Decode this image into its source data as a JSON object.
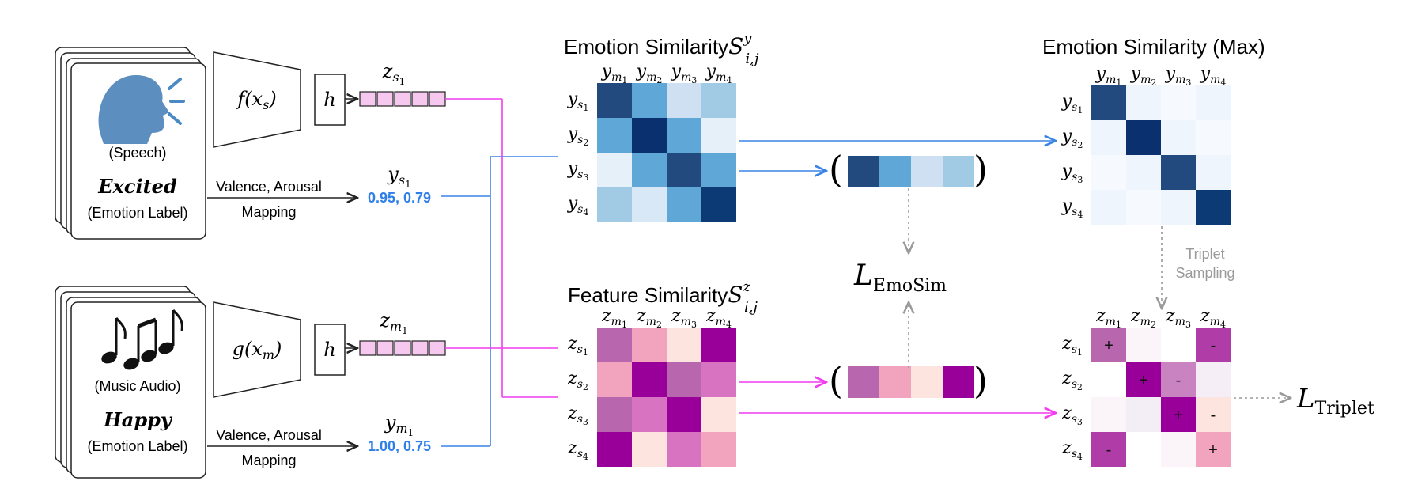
{
  "speech_card": {
    "modality_label": "(Speech)",
    "emotion": "Excited",
    "emotion_caption": "(Emotion Label)",
    "icon": "speaking-head-icon"
  },
  "music_card": {
    "modality_label": "(Music Audio)",
    "emotion": "Happy",
    "emotion_caption": "(Emotion Label)",
    "icon": "music-notes-icon"
  },
  "encoders": {
    "speech": "f(x",
    "speech_sub": "s",
    "music": "g(x",
    "music_sub": "m",
    "close": ")",
    "projection": "h"
  },
  "embeddings": {
    "speech": {
      "base": "z",
      "sub": "s",
      "subsub": "1"
    },
    "music": {
      "base": "z",
      "sub": "m",
      "subsub": "1"
    }
  },
  "mapping": {
    "line1": "Valence, Arousal",
    "line2": "Mapping"
  },
  "labels_va": {
    "speech": {
      "base": "y",
      "sub": "s",
      "subsub": "1",
      "value": "0.95, 0.79"
    },
    "music": {
      "base": "y",
      "sub": "m",
      "subsub": "1",
      "value": "1.00, 0.75"
    }
  },
  "emotion_similarity": {
    "title": "Emotion Similarity",
    "symbol": "S",
    "sup": "y",
    "sub": "i,j",
    "col_base": "y",
    "col_sub": "m",
    "row_base": "y",
    "row_sub": "s",
    "indices": [
      "1",
      "2",
      "3",
      "4"
    ],
    "matrix": [
      [
        "#234a7f",
        "#5fa7d6",
        "#cfe0f2",
        "#a1cae4"
      ],
      [
        "#5fa7d6",
        "#0b3070",
        "#5fa7d6",
        "#e6f0f9"
      ],
      [
        "#e6f0f9",
        "#5fa7d6",
        "#234a7f",
        "#5fa7d6"
      ],
      [
        "#a1cae4",
        "#d9e8f6",
        "#5fa7d6",
        "#0b3a75"
      ]
    ]
  },
  "emotion_similarity_max": {
    "title": "Emotion Similarity (Max)",
    "col_base": "y",
    "col_sub": "m",
    "row_base": "y",
    "row_sub": "s",
    "indices": [
      "1",
      "2",
      "3",
      "4"
    ],
    "matrix": [
      [
        "#234a7f",
        "#eef5fc",
        "#f6fafe",
        "#eef5fc"
      ],
      [
        "#eef5fc",
        "#0b3070",
        "#eef5fc",
        "#f6fafe"
      ],
      [
        "#f6fafe",
        "#eef5fc",
        "#234a7f",
        "#eef5fc"
      ],
      [
        "#eef5fc",
        "#f6fafe",
        "#eef5fc",
        "#0b3a75"
      ]
    ]
  },
  "feature_similarity": {
    "title": "Feature Similarity",
    "symbol": "S",
    "sup": "z",
    "sub": "i,j",
    "col_base": "z",
    "col_sub": "m",
    "row_base": "z",
    "row_sub": "s",
    "indices": [
      "1",
      "2",
      "3",
      "4"
    ],
    "matrix": [
      [
        "#b866ae",
        "#f2a3be",
        "#fde4df",
        "#990099"
      ],
      [
        "#f2a3be",
        "#990099",
        "#b866ae",
        "#d873c2"
      ],
      [
        "#b866ae",
        "#d873c2",
        "#990099",
        "#fde4df"
      ],
      [
        "#990099",
        "#fde4df",
        "#d873c2",
        "#f2a3be"
      ]
    ]
  },
  "triplet_matrix": {
    "col_base": "z",
    "col_sub": "m",
    "row_base": "z",
    "row_sub": "s",
    "indices": [
      "1",
      "2",
      "3",
      "4"
    ],
    "matrix": [
      [
        "#b866ae",
        "#fbf5fa",
        "#ffffff",
        "#b03ca8"
      ],
      [
        "#ffffff",
        "#990099",
        "#c983c1",
        "#f5eef6"
      ],
      [
        "#fbf5fa",
        "#f3eef5",
        "#990099",
        "#fde4df"
      ],
      [
        "#b03ca8",
        "#ffffff",
        "#fbf5fa",
        "#f2a3be"
      ]
    ],
    "signs": [
      [
        "+",
        "",
        "",
        "-"
      ],
      [
        "",
        "+",
        "-",
        ""
      ],
      [
        "",
        "",
        "+",
        "-"
      ],
      [
        "-",
        "",
        "",
        "+"
      ]
    ]
  },
  "vectors": {
    "emotion": [
      "#234a7f",
      "#5fa7d6",
      "#cfe0f2",
      "#a1cae4"
    ],
    "feature": [
      "#b866ae",
      "#f2a3be",
      "#fde4df",
      "#990099"
    ],
    "open": "(",
    "close": ")"
  },
  "losses": {
    "emosim_L": "L",
    "emosim_sub": "EmoSim",
    "triplet_L": "L",
    "triplet_sub": "Triplet"
  },
  "triplet_sampling": {
    "line1": "Triplet",
    "line2": "Sampling"
  },
  "colors": {
    "blue_line": "#3a84e6",
    "magenta_line": "#f23cf0",
    "value_blue": "#2f7fe8",
    "gray_arrow": "#9a9a9a",
    "embedding_fill": "#f7c8ef"
  }
}
